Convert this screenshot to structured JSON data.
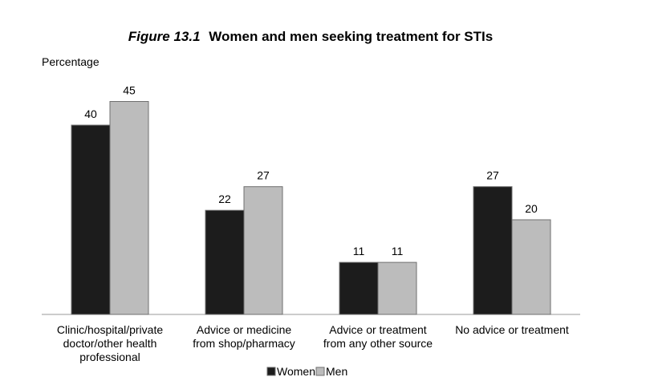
{
  "chart_data": {
    "type": "bar",
    "title_prefix": "Figure 13.1",
    "title": "Women and men seeking treatment for STIs",
    "ylabel": "Percentage",
    "categories": [
      [
        "Clinic/hospital/private",
        "doctor/other health",
        "professional"
      ],
      [
        "Advice or medicine",
        "from shop/pharmacy"
      ],
      [
        "Advice or treatment",
        "from any other source"
      ],
      [
        "No advice or treatment"
      ]
    ],
    "series": [
      {
        "name": "Women",
        "color": "#1c1c1c",
        "values": [
          40,
          22,
          11,
          27
        ]
      },
      {
        "name": "Men",
        "color": "#bcbcbc",
        "values": [
          45,
          27,
          11,
          20
        ]
      }
    ],
    "ylim": [
      0,
      45
    ],
    "grid": false,
    "legend_position": "bottom-center",
    "data_labels": true
  }
}
